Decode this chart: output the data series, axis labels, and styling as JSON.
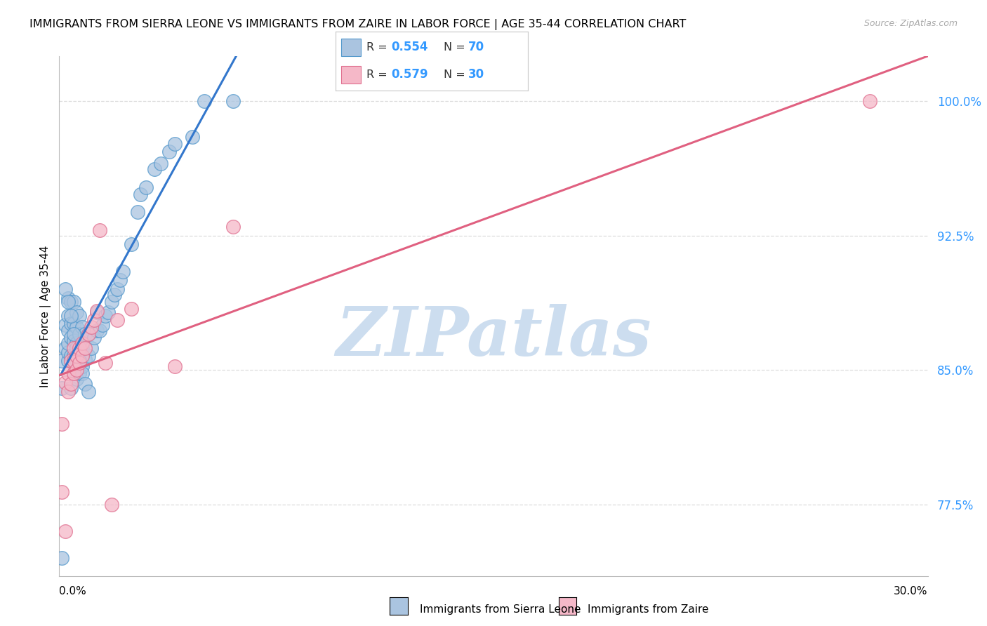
{
  "title": "IMMIGRANTS FROM SIERRA LEONE VS IMMIGRANTS FROM ZAIRE IN LABOR FORCE | AGE 35-44 CORRELATION CHART",
  "source": "Source: ZipAtlas.com",
  "ylabel": "In Labor Force | Age 35-44",
  "xlim": [
    0.0,
    0.3
  ],
  "ylim": [
    0.735,
    1.025
  ],
  "ytick_positions": [
    0.775,
    0.85,
    0.925,
    1.0
  ],
  "ytick_labels": [
    "77.5%",
    "85.0%",
    "92.5%",
    "100.0%"
  ],
  "blue_scatter_color": "#aac4e0",
  "blue_edge_color": "#5599cc",
  "pink_scatter_color": "#f5b8c8",
  "pink_edge_color": "#e07090",
  "blue_line_color": "#3377cc",
  "pink_line_color": "#e06080",
  "watermark_color": "#ccddef",
  "tick_color": "#3399ff",
  "grid_color": "#dddddd",
  "legend_R_blue": "0.554",
  "legend_N_blue": "70",
  "legend_R_pink": "0.579",
  "legend_N_pink": "30",
  "sierra_leone_x": [
    0.001,
    0.001,
    0.002,
    0.002,
    0.003,
    0.003,
    0.003,
    0.003,
    0.003,
    0.003,
    0.004,
    0.004,
    0.004,
    0.004,
    0.004,
    0.005,
    0.005,
    0.005,
    0.005,
    0.005,
    0.006,
    0.006,
    0.006,
    0.006,
    0.006,
    0.007,
    0.007,
    0.007,
    0.007,
    0.008,
    0.008,
    0.008,
    0.009,
    0.009,
    0.01,
    0.01,
    0.011,
    0.012,
    0.013,
    0.013,
    0.014,
    0.015,
    0.016,
    0.017,
    0.018,
    0.019,
    0.02,
    0.021,
    0.022,
    0.025,
    0.027,
    0.028,
    0.03,
    0.033,
    0.035,
    0.038,
    0.04,
    0.046,
    0.05,
    0.06,
    0.002,
    0.003,
    0.004,
    0.005,
    0.006,
    0.007,
    0.008,
    0.009,
    0.01,
    0.001
  ],
  "sierra_leone_y": [
    0.84,
    0.855,
    0.862,
    0.875,
    0.855,
    0.86,
    0.865,
    0.872,
    0.88,
    0.89,
    0.84,
    0.858,
    0.868,
    0.876,
    0.888,
    0.848,
    0.858,
    0.866,
    0.876,
    0.888,
    0.845,
    0.855,
    0.865,
    0.874,
    0.882,
    0.848,
    0.858,
    0.87,
    0.88,
    0.852,
    0.862,
    0.874,
    0.856,
    0.87,
    0.858,
    0.87,
    0.862,
    0.868,
    0.872,
    0.882,
    0.872,
    0.875,
    0.88,
    0.882,
    0.888,
    0.892,
    0.895,
    0.9,
    0.905,
    0.92,
    0.938,
    0.948,
    0.952,
    0.962,
    0.965,
    0.972,
    0.976,
    0.98,
    1.0,
    1.0,
    0.895,
    0.888,
    0.88,
    0.87,
    0.862,
    0.855,
    0.848,
    0.842,
    0.838,
    0.745
  ],
  "zaire_x": [
    0.001,
    0.001,
    0.002,
    0.002,
    0.003,
    0.003,
    0.004,
    0.004,
    0.005,
    0.005,
    0.005,
    0.006,
    0.006,
    0.007,
    0.007,
    0.008,
    0.008,
    0.009,
    0.01,
    0.011,
    0.012,
    0.013,
    0.014,
    0.016,
    0.018,
    0.02,
    0.025,
    0.04,
    0.06,
    0.28
  ],
  "zaire_y": [
    0.82,
    0.782,
    0.76,
    0.843,
    0.838,
    0.848,
    0.842,
    0.855,
    0.848,
    0.855,
    0.862,
    0.85,
    0.858,
    0.854,
    0.862,
    0.858,
    0.865,
    0.862,
    0.87,
    0.874,
    0.878,
    0.883,
    0.928,
    0.854,
    0.775,
    0.878,
    0.884,
    0.852,
    0.93,
    1.0
  ]
}
